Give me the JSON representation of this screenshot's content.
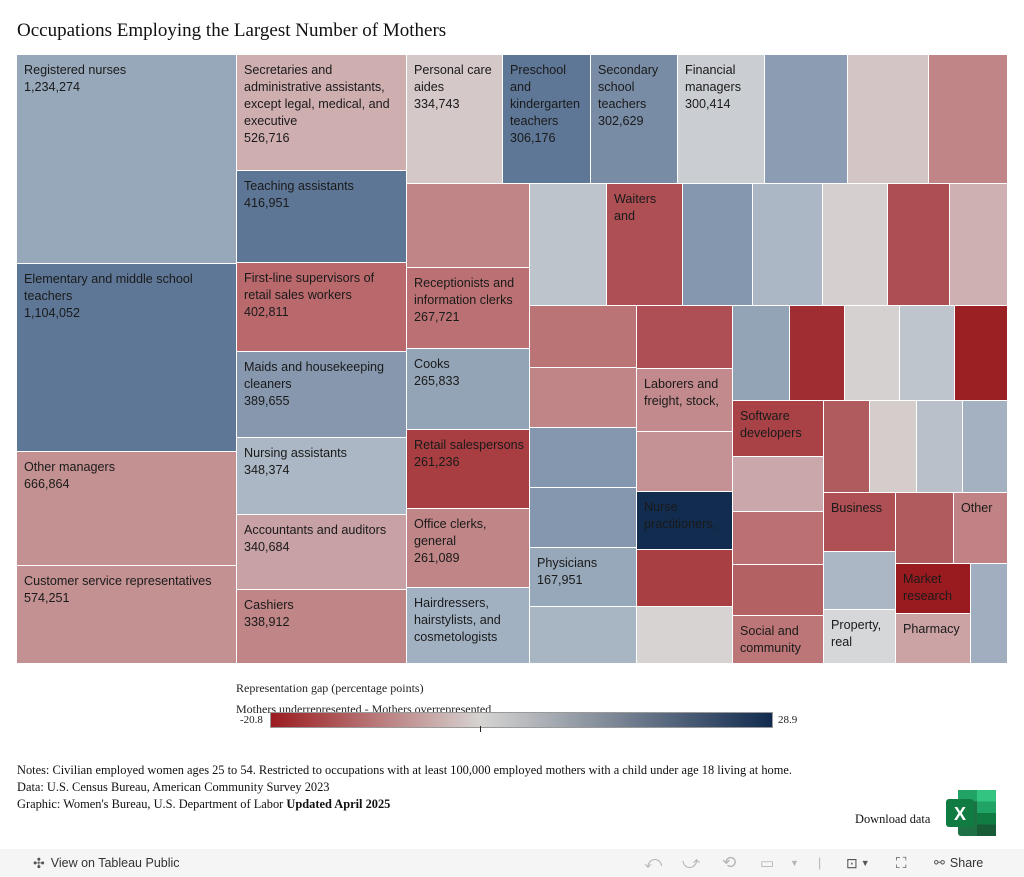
{
  "chart_data": {
    "type": "treemap",
    "title": "Occupations Employing the Largest Number of Mothers",
    "size_measure": "Employed mothers",
    "color_measure": "Representation gap (percentage points)",
    "color_range": [
      -20.8,
      28.9
    ],
    "color_scale": {
      "negative": "#9b1c20",
      "midpoint": "#d6d4d2",
      "positive": "#112b4f"
    },
    "tiles": [
      {
        "label": "Registered nurses",
        "value": 1234274,
        "color": "#97a8ba"
      },
      {
        "label": "Elementary and middle school teachers",
        "value": 1104052,
        "color": "#5e7796"
      },
      {
        "label": "Other managers",
        "value": 666864,
        "color": "#c49192"
      },
      {
        "label": "Customer service representatives",
        "value": 574251,
        "color": "#c49192"
      },
      {
        "label": "Secretaries and administrative assistants, except legal, medical, and executive",
        "value": 526716,
        "color": "#cfaeb0"
      },
      {
        "label": "Teaching assistants",
        "value": 416951,
        "color": "#5e7695"
      },
      {
        "label": "First-line supervisors of retail sales workers",
        "value": 402811,
        "color": "#b9696c"
      },
      {
        "label": "Maids and housekeeping cleaners",
        "value": 389655,
        "color": "#8697ae"
      },
      {
        "label": "Nursing assistants",
        "value": 348374,
        "color": "#abb7c4"
      },
      {
        "label": "Accountants and auditors",
        "value": 340684,
        "color": "#c8a1a4"
      },
      {
        "label": "Cashiers",
        "value": 338912,
        "color": "#c08586"
      },
      {
        "label": "Personal care aides",
        "value": 334743,
        "color": "#d5c8c9"
      },
      {
        "label": "Preschool and kindergarten teachers",
        "value": 306176,
        "color": "#5e7796"
      },
      {
        "label": "Secondary school teachers",
        "value": 302629,
        "color": "#788ca6"
      },
      {
        "label": "Financial managers",
        "value": 300414,
        "color": "#cacdd1"
      },
      {
        "label": "Receptionists and information clerks",
        "value": 267721,
        "color": "#bb7173"
      },
      {
        "label": "Cooks",
        "value": 265833,
        "color": "#93a4b6"
      },
      {
        "label": "Retail salespersons",
        "value": 261236,
        "color": "#a83e42"
      },
      {
        "label": "Office clerks, general",
        "value": 261089,
        "color": "#c08587"
      },
      {
        "label": "Hairdressers, hairstylists, and cosmetologists",
        "value": null,
        "color": "#a2b1c2"
      },
      {
        "label": "Physicians",
        "value": 167951,
        "color": "#97a8ba"
      },
      {
        "label": "Waiters and",
        "value": null,
        "color": "#ae4f54"
      },
      {
        "label": "Laborers and freight, stock,",
        "value": null,
        "color": "#c28a8c"
      },
      {
        "label": "Software developers",
        "value": null,
        "color": "#a94246"
      },
      {
        "label": "Nurse practitioners,",
        "value": null,
        "color": "#122c50"
      },
      {
        "label": "Social and community",
        "value": null,
        "color": "#bd7678"
      },
      {
        "label": "Business",
        "value": null,
        "color": "#ae5054"
      },
      {
        "label": "Other",
        "value": null,
        "color": "#c08284"
      },
      {
        "label": "Market research",
        "value": null,
        "color": "#9a1b1f"
      },
      {
        "label": "Property, real",
        "value": null,
        "color": "#d6d7d9"
      },
      {
        "label": "Pharmacy",
        "value": null,
        "color": "#cba3a5"
      }
    ]
  },
  "legend": {
    "title": "Representation gap (percentage points)",
    "subtitle": "Mothers underrepresented - Mothers overrepresented",
    "min_label": "-20.8",
    "max_label": "28.9"
  },
  "notes": {
    "line1": "Notes: Civilian employed women ages 25 to 54. Restricted to occupations with at least 100,000 employed mothers with a child under age 18 living at home.",
    "line2": "Data: U.S. Census Bureau, American Community Survey 2023",
    "line3_prefix": "Graphic: Women's Bureau, U.S. Department of Labor ",
    "line3_bold": "Updated April 2025"
  },
  "download": {
    "label": "Download data",
    "icon": "excel-icon"
  },
  "toolbar": {
    "view_on_tableau": "View on Tableau Public",
    "share": "Share",
    "icons": [
      "tableau-logo-icon",
      "undo-icon",
      "redo-icon",
      "revert-icon",
      "refresh-icon",
      "download-icon",
      "fullscreen-icon",
      "share-icon"
    ]
  }
}
